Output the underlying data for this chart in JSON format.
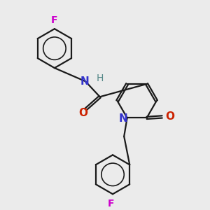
{
  "bg_color": "#ebebeb",
  "bond_color": "#1a1a1a",
  "N_color": "#3333cc",
  "O_color": "#cc2200",
  "F_color": "#cc00cc",
  "H_color": "#558888",
  "lw": 1.6,
  "dbo": 0.055,
  "figsize": [
    3.0,
    3.0
  ],
  "dpi": 100,
  "xlim": [
    0,
    10
  ],
  "ylim": [
    0,
    10
  ]
}
